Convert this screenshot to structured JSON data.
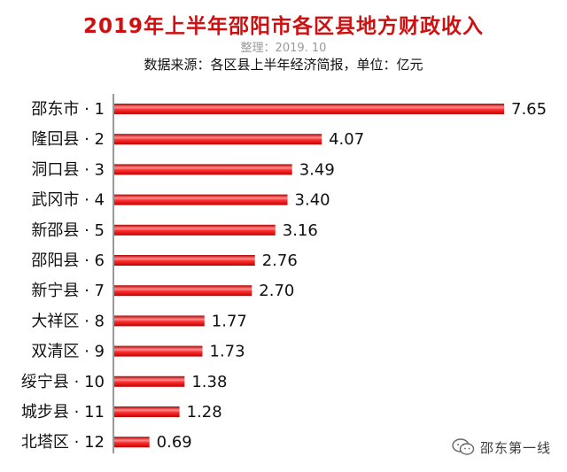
{
  "chart_data": {
    "type": "bar",
    "orientation": "horizontal",
    "title": "2019年上半年邵阳市各区县地方财政收入",
    "subtitle": "整理：2019. 10",
    "note": "数据来源：各区县上半年经济简报，单位：亿元",
    "categories": [
      "邵东市 · 1",
      "隆回县 · 2",
      "洞口县 · 3",
      "武冈市 · 4",
      "新邵县 · 5",
      "邵阳县 · 6",
      "新宁县 · 7",
      "大祥区 · 8",
      "双清区 · 9",
      "绥宁县 · 10",
      "城步县 · 11",
      "北塔区 · 12"
    ],
    "values": [
      7.65,
      4.07,
      3.49,
      3.4,
      3.16,
      2.76,
      2.7,
      1.77,
      1.73,
      1.38,
      1.28,
      0.69
    ],
    "value_labels": [
      "7.65",
      "4.07",
      "3.49",
      "3.40",
      "3.16",
      "2.76",
      "2.70",
      "1.77",
      "1.73",
      "1.38",
      "1.28",
      "0.69"
    ],
    "bar_color": "#e01010",
    "bar_highlight": "#ff9a9a",
    "grid": false,
    "legend": "none"
  },
  "watermark": {
    "text": "邵东第一线",
    "icon": "wechat-icon"
  },
  "colors": {
    "title": "#d01010",
    "subtitle": "#9a9a9a"
  }
}
